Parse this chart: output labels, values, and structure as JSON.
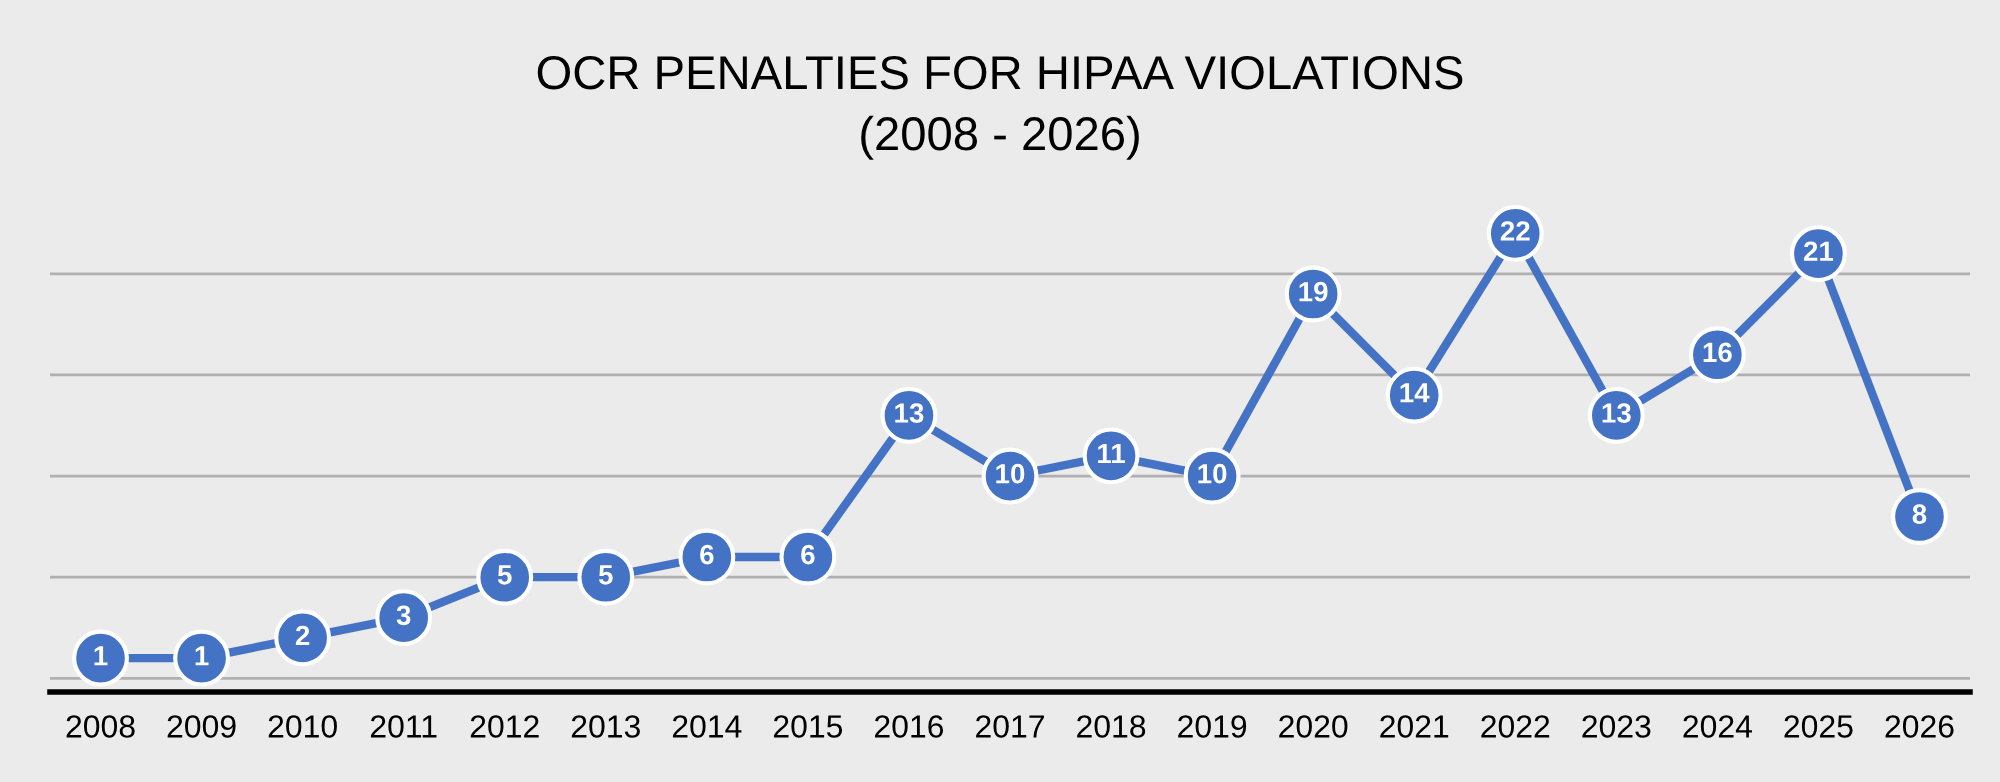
{
  "chart_data": {
    "type": "line",
    "title": "OCR PENALTIES FOR HIPAA VIOLATIONS\n(2008 - 2026)",
    "categories": [
      "2008",
      "2009",
      "2010",
      "2011",
      "2012",
      "2013",
      "2014",
      "2015",
      "2016",
      "2017",
      "2018",
      "2019",
      "2020",
      "2021",
      "2022",
      "2023",
      "2024",
      "2025",
      "2026"
    ],
    "series": [
      {
        "color": "#4472c4",
        "values": [
          1,
          1,
          2,
          3,
          5,
          5,
          6,
          6,
          13,
          10,
          11,
          10,
          19,
          14,
          22,
          13,
          16,
          21,
          8
        ]
      }
    ],
    "grid": "y",
    "marker": "circle",
    "line_style": "solid",
    "data_labels": true,
    "tick_labels": "x"
  }
}
